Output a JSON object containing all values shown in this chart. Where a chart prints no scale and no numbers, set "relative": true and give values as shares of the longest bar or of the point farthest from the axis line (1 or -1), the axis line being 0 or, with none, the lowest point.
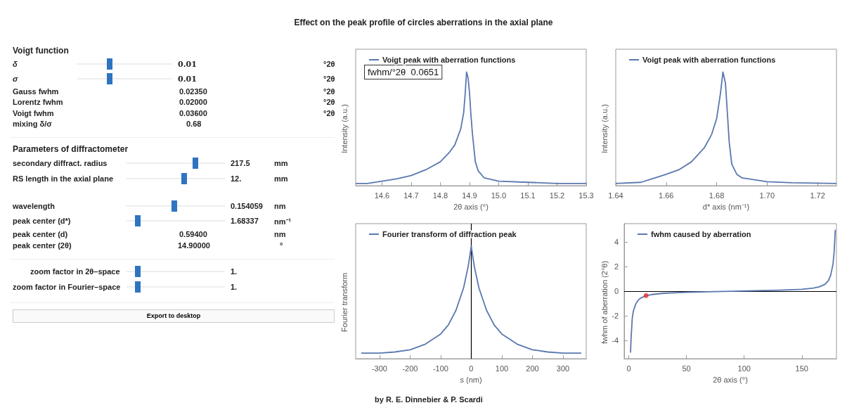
{
  "chart_data": [
    {
      "type": "other",
      "title": "Effect on the peak profile of circles aberrations in the axial plane",
      "annotations": [
        "Voigt function",
        "δ",
        "0.01",
        "°2θ",
        "σ",
        "0.01",
        "°2θ",
        "Gauss  fwhm",
        "0.02350",
        "°2θ",
        "Lorentz fwhm",
        "0.02000",
        "°2θ",
        "Voigt  fwhm",
        "0.03600",
        "°2θ",
        "mixing  δ/σ",
        "0.68",
        "Parameters of diffractometer",
        "secondary diffract. radius",
        "217.5",
        "mm",
        "RS length in the axial plane",
        "12.",
        "mm",
        "wavelength",
        "0.154059",
        "nm",
        "peak center (d*)",
        "1.68337",
        "nm⁻¹",
        "peak center (d)",
        "0.59400",
        "nm",
        "peak center (2θ)",
        "14.90000",
        "°",
        "zoom factor in 2θ–space",
        "1.",
        "zoom factor in Fourier–space",
        "1.",
        "Export to desktop",
        "by R. E. Dinnebier & P. Scardi"
      ]
    },
    {
      "type": "line",
      "relative": true,
      "xlabel": "2θ axis (°)",
      "ylabel": "Intensity (a.u.)",
      "xlim": [
        14.51,
        15.3
      ],
      "xticks": [
        14.6,
        14.7,
        14.8,
        14.9,
        {
          "value": 15,
          "label": "15.0"
        },
        15.1,
        15.2,
        15.3
      ],
      "legend": "top left",
      "annotations": [
        "fwhm/°2θ  0.0651"
      ],
      "series": [
        {
          "name": "Voigt peak with aberration functions",
          "color": "#5a78b0",
          "x": [
            14.51,
            14.55,
            14.6,
            14.65,
            14.7,
            14.75,
            14.8,
            14.83,
            14.85,
            14.87,
            14.88,
            14.885,
            14.89,
            14.895,
            14.9,
            14.905,
            14.91,
            14.92,
            14.93,
            14.95,
            15.0,
            15.1,
            15.2,
            15.3
          ],
          "values": [
            0.02,
            0.02,
            0.04,
            0.06,
            0.09,
            0.14,
            0.21,
            0.29,
            0.36,
            0.5,
            0.64,
            0.8,
            1,
            0.95,
            0.82,
            0.62,
            0.46,
            0.21,
            0.13,
            0.07,
            0.04,
            0.03,
            0.02,
            0.02
          ]
        }
      ]
    },
    {
      "type": "line",
      "relative": true,
      "xlabel": "d* axis (nm⁻¹)",
      "ylabel": "Intensity (a.u.)",
      "xlim": [
        1.64,
        1.7275
      ],
      "xticks": [
        1.64,
        1.66,
        1.68,
        {
          "value": 1.7,
          "label": "1.70"
        },
        1.72
      ],
      "legend": "top left",
      "series": [
        {
          "name": "Voigt peak with aberration functions",
          "color": "#5a78b0",
          "x": [
            1.64,
            1.65,
            1.66,
            1.665,
            1.67,
            1.675,
            1.678,
            1.68,
            1.6815,
            1.6825,
            1.6835,
            1.685,
            1.686,
            1.688,
            1.69,
            1.7,
            1.71,
            1.7275
          ],
          "values": [
            0.02,
            0.03,
            0.1,
            0.14,
            0.21,
            0.33,
            0.45,
            0.59,
            0.81,
            1,
            0.9,
            0.38,
            0.19,
            0.1,
            0.07,
            0.035,
            0.026,
            0.02
          ]
        }
      ]
    },
    {
      "type": "line",
      "relative": true,
      "xlabel": "s (nm)",
      "ylabel": "Fourier transform",
      "xlim": [
        -378,
        376
      ],
      "xticks": [
        -300,
        -200,
        -100,
        0,
        100,
        200,
        300
      ],
      "legend": "top left",
      "ref_lines": [
        {
          "axis": "x",
          "value": 0,
          "color": "#000000"
        }
      ],
      "series": [
        {
          "name": "Fourier transform of diffraction peak",
          "color": "#5a78b0",
          "x": [
            -360,
            -300,
            -250,
            -200,
            -150,
            -100,
            -75,
            -50,
            -25,
            -10,
            0,
            10,
            25,
            50,
            75,
            100,
            150,
            200,
            250,
            300,
            360
          ],
          "values": [
            0.05,
            0.05,
            0.06,
            0.08,
            0.13,
            0.22,
            0.3,
            0.43,
            0.63,
            0.82,
            1,
            0.82,
            0.63,
            0.43,
            0.3,
            0.22,
            0.13,
            0.08,
            0.06,
            0.05,
            0.05
          ]
        }
      ]
    },
    {
      "type": "line",
      "xlabel": "2θ axis (°)",
      "ylabel": "fwhm of aberration (2°θ)",
      "xlim": [
        -4,
        180
      ],
      "xticks": [
        0,
        50,
        100,
        150
      ],
      "ylim": [
        -5.5,
        5.5
      ],
      "yticks": [
        -4,
        -2,
        0,
        2,
        4
      ],
      "legend": "top left",
      "ref_lines": [
        {
          "axis": "y",
          "value": 0,
          "color": "#000000"
        }
      ],
      "series": [
        {
          "name": "fwhm caused by aberration",
          "color": "#5a78b0",
          "x": [
            1.5,
            2,
            3,
            4,
            6,
            8,
            10,
            15,
            20,
            30,
            50,
            75,
            90,
            110,
            130,
            150,
            160,
            165,
            170,
            173,
            175,
            177,
            178,
            179
          ],
          "values": [
            -5,
            -3.8,
            -2.2,
            -1.6,
            -1.05,
            -0.75,
            -0.58,
            -0.36,
            -0.27,
            -0.17,
            -0.09,
            -0.03,
            0,
            0.04,
            0.08,
            0.15,
            0.25,
            0.35,
            0.55,
            0.85,
            1.3,
            2.2,
            3.2,
            5
          ]
        },
        {
          "type": "scatter",
          "color": "#e8312f",
          "x": [
            15
          ],
          "values": [
            -0.36
          ]
        }
      ]
    }
  ]
}
